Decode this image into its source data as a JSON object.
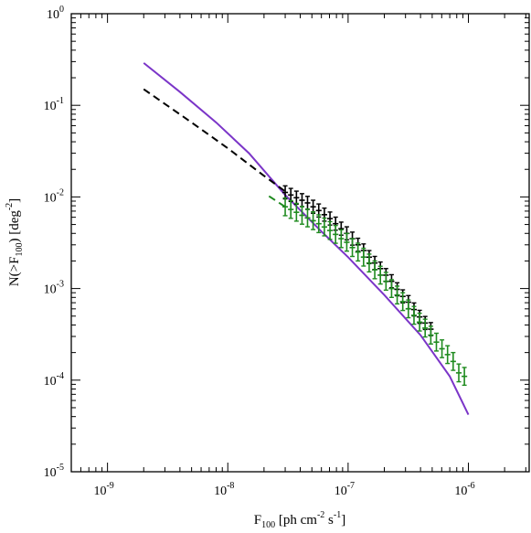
{
  "chart_data": {
    "type": "line",
    "title": "",
    "xscale": "log",
    "yscale": "log",
    "xlim": [
      5e-10,
      3.2e-06
    ],
    "ylim": [
      1e-05,
      1
    ],
    "x_ticks": [
      {
        "value": 1e-09,
        "base": "10",
        "exp": "-9"
      },
      {
        "value": 1e-08,
        "base": "10",
        "exp": "-8"
      },
      {
        "value": 1e-07,
        "base": "10",
        "exp": "-7"
      },
      {
        "value": 1e-06,
        "base": "10",
        "exp": "-6"
      }
    ],
    "y_ticks": [
      {
        "value": 1e-05,
        "base": "10",
        "exp": "-5"
      },
      {
        "value": 0.0001,
        "base": "10",
        "exp": "-4"
      },
      {
        "value": 0.001,
        "base": "10",
        "exp": "-3"
      },
      {
        "value": 0.01,
        "base": "10",
        "exp": "-2"
      },
      {
        "value": 0.1,
        "base": "10",
        "exp": "-1"
      },
      {
        "value": 1,
        "base": "10",
        "exp": "0"
      }
    ],
    "xlabel": {
      "main": "F",
      "sub": "100",
      "mid": " [ph cm",
      "sup1": "-2",
      "mid2": " s",
      "sup2": "-1",
      "end": "]"
    },
    "ylabel": {
      "main": "N(>F",
      "sub": "100",
      "mid": ") [deg",
      "sup": "-2",
      "end": "]"
    },
    "grid": false,
    "legend": "none",
    "colors": {
      "purple": "#7b35c8",
      "black": "#000000",
      "green": "#1f8b1f"
    },
    "series": [
      {
        "style": "solid",
        "color": "purple",
        "x": [
          2e-09,
          4e-09,
          8e-09,
          1.5e-08,
          3e-08,
          6e-08,
          1e-07,
          2e-07,
          4e-07,
          7e-07,
          1e-06
        ],
        "y": [
          0.29,
          0.14,
          0.065,
          0.03,
          0.0105,
          0.0042,
          0.0022,
          0.00085,
          0.00031,
          0.00011,
          4.2e-05
        ]
      },
      {
        "style": "dashed",
        "color": "black",
        "x": [
          2e-09,
          5e-09,
          1e-08,
          2e-08,
          3e-08
        ],
        "y": [
          0.15,
          0.065,
          0.034,
          0.017,
          0.0115
        ]
      },
      {
        "style": "dashed",
        "color": "green",
        "x": [
          2.2e-08,
          3e-08
        ],
        "y": [
          0.0102,
          0.0078
        ]
      },
      {
        "style": "errorbars",
        "color": "black",
        "x": [
          3e-08,
          3.34e-08,
          3.72e-08,
          4.14e-08,
          4.6e-08,
          5.12e-08,
          5.7e-08,
          6.35e-08,
          7.07e-08,
          7.87e-08,
          8.76e-08,
          9.75e-08,
          1.085e-07,
          1.208e-07,
          1.345e-07,
          1.497e-07,
          1.666e-07,
          1.855e-07,
          2.065e-07,
          2.298e-07,
          2.558e-07,
          2.848e-07,
          3.17e-07,
          3.53e-07,
          3.93e-07,
          4.37e-07,
          4.87e-07
        ],
        "y": [
          0.0112,
          0.0105,
          0.0098,
          0.0092,
          0.0086,
          0.0078,
          0.0071,
          0.0064,
          0.0058,
          0.0051,
          0.0045,
          0.004,
          0.0035,
          0.003,
          0.0026,
          0.0022,
          0.0019,
          0.00165,
          0.0014,
          0.0012,
          0.00098,
          0.00082,
          0.00071,
          0.00059,
          0.00049,
          0.00042,
          0.00036
        ],
        "err_lo_frac": 0.15,
        "err_hi_frac": 0.18
      },
      {
        "style": "errorbars",
        "color": "green",
        "x": [
          3e-08,
          3.34e-08,
          3.72e-08,
          4.14e-08,
          4.6e-08,
          5.12e-08,
          5.7e-08,
          6.35e-08,
          7.07e-08,
          7.87e-08,
          8.76e-08,
          9.75e-08,
          1.085e-07,
          1.208e-07,
          1.345e-07,
          1.497e-07,
          1.666e-07,
          1.855e-07,
          2.065e-07,
          2.298e-07,
          2.558e-07,
          2.848e-07,
          3.17e-07,
          3.53e-07,
          3.93e-07,
          4.37e-07,
          4.87e-07,
          5.42e-07,
          6.03e-07,
          6.71e-07,
          7.47e-07,
          8.32e-07,
          9.26e-07
        ],
        "y": [
          0.0078,
          0.0073,
          0.0068,
          0.0063,
          0.0059,
          0.0055,
          0.0051,
          0.0047,
          0.0043,
          0.0039,
          0.0035,
          0.0032,
          0.0028,
          0.0025,
          0.0022,
          0.0019,
          0.0016,
          0.0014,
          0.0012,
          0.001,
          0.00085,
          0.00072,
          0.0006,
          0.00051,
          0.00043,
          0.00037,
          0.00031,
          0.00026,
          0.00022,
          0.00019,
          0.00016,
          0.00012,
          0.00011
        ],
        "err_lo_frac": 0.2,
        "err_hi_frac": 0.25
      }
    ]
  }
}
